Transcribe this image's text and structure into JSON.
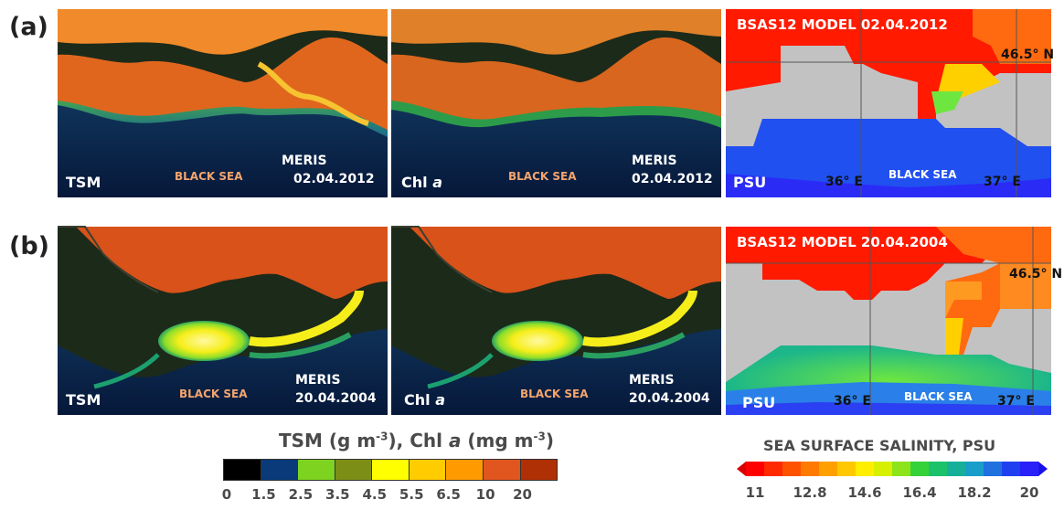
{
  "rows": [
    {
      "label": "(a)",
      "tsm": {
        "param": "TSM",
        "sea": "BLACK SEA",
        "sensor": "MERIS",
        "date": "02.04.2012"
      },
      "chl": {
        "param": "Chl",
        "param_italic": "a",
        "sea": "BLACK SEA",
        "sensor": "MERIS",
        "date": "02.04.2012"
      },
      "model": {
        "title": "BSAS12 MODEL 02.04.2012",
        "unit": "PSU",
        "sea": "BLACK SEA",
        "lon1": "36° E",
        "lon2": "37° E",
        "lat": "46.5° N"
      }
    },
    {
      "label": "(b)",
      "tsm": {
        "param": "TSM",
        "sea": "BLACK SEA",
        "sensor": "MERIS",
        "date": "20.04.2004"
      },
      "chl": {
        "param": "Chl",
        "param_italic": "a",
        "sea": "BLACK SEA",
        "sensor": "MERIS",
        "date": "20.04.2004"
      },
      "model": {
        "title": "BSAS12 MODEL 20.04.2004",
        "unit": "PSU",
        "sea": "BLACK SEA",
        "lon1": "36° E",
        "lon2": "37° E",
        "lat": "46.5° N"
      }
    }
  ],
  "tsm_scale": {
    "title_a": "TSM (g m",
    "title_a_sup": "-3",
    "title_b": "), Chl ",
    "title_b_italic": "a",
    "title_c": " (mg m",
    "title_c_sup": "-3",
    "title_d": ")",
    "colors": [
      "#000000",
      "#0a3a7a",
      "#7ed320",
      "#7d8e16",
      "#ffff00",
      "#ffcc00",
      "#ff9a00",
      "#e0561e",
      "#b03005"
    ],
    "ticks": [
      "0",
      "1.5",
      "2.5",
      "3.5",
      "4.5",
      "5.5",
      "6.5",
      "10",
      "20"
    ]
  },
  "salinity_scale": {
    "title": "SEA SURFACE SALINITY, PSU",
    "ticks": [
      "11",
      "12.8",
      "14.6",
      "16.4",
      "18.2",
      "20"
    ],
    "colors": [
      "#ff0000",
      "#ff2a00",
      "#ff5200",
      "#ff7a00",
      "#ffa000",
      "#ffc800",
      "#ffee00",
      "#d6f000",
      "#8ee41a",
      "#36d23a",
      "#1cc26a",
      "#16b09a",
      "#189ec8",
      "#2070e0",
      "#2040f0",
      "#2a20f8"
    ]
  },
  "colors": {
    "land_dark": "#1c2a1a",
    "land_orange": "#d8521a",
    "grey_land": "#c0c0c0"
  }
}
